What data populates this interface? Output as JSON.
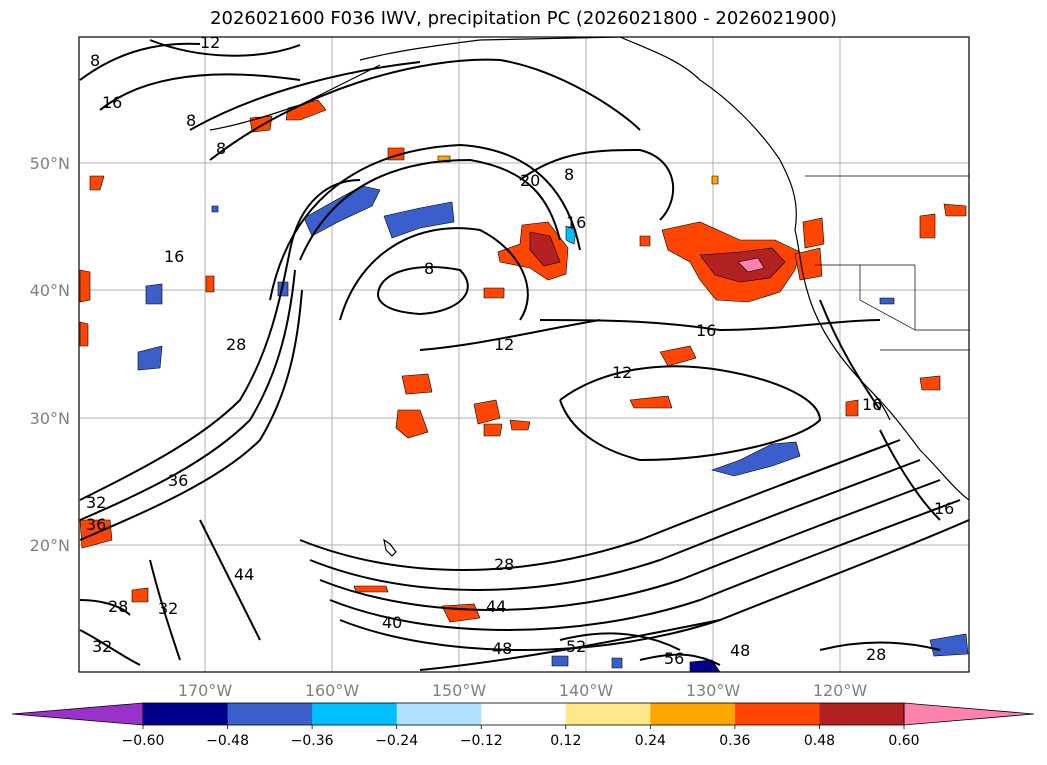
{
  "title": "2026021600 F036 IWV, precipitation PC (2026021800 - 2026021900)",
  "map": {
    "lat_labels": [
      "50°N",
      "40°N",
      "30°N",
      "20°N"
    ],
    "lon_labels": [
      "170°W",
      "160°W",
      "150°W",
      "140°W",
      "130°W",
      "120°W"
    ],
    "contour_labels": [
      "12",
      "8",
      "16",
      "8",
      "8",
      "20",
      "8",
      "16",
      "16",
      "8",
      "12",
      "16",
      "12",
      "16",
      "16",
      "28",
      "36",
      "32",
      "36",
      "28",
      "44",
      "40",
      "44",
      "28",
      "48",
      "32",
      "52",
      "48",
      "56",
      "28",
      "32"
    ]
  },
  "colorbar": {
    "ticks": [
      "−0.60",
      "−0.48",
      "−0.36",
      "−0.24",
      "−0.12",
      "0.12",
      "0.24",
      "0.36",
      "0.48",
      "0.60"
    ],
    "colors": [
      "#9932cc",
      "#00008b",
      "#3a5fcd",
      "#00bfff",
      "#b0e2ff",
      "#ffffff",
      "#ffe88a",
      "#ffa500",
      "#ff4500",
      "#b22222",
      "#ff82ab"
    ]
  },
  "colors": {
    "grid": "#b0b0b0",
    "contour": "#000000",
    "warm_low": "#ffe88a",
    "warm_mid": "#ffa500",
    "warm_high": "#ff4500",
    "warm_max": "#b22222",
    "warm_peak": "#ff82ab",
    "cool_low": "#b0e2ff",
    "cool_mid": "#00bfff",
    "cool_high": "#3a5fcd"
  }
}
